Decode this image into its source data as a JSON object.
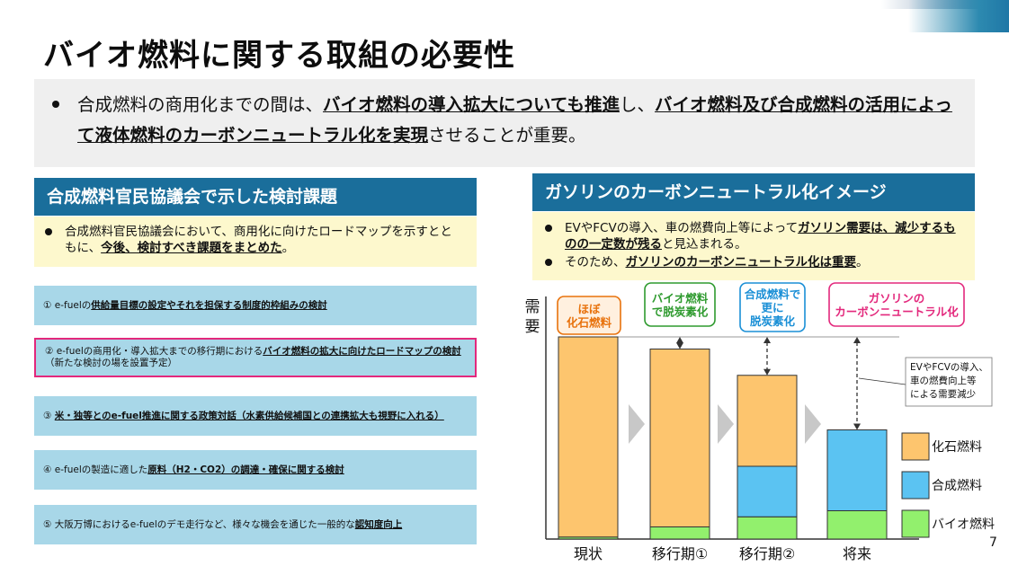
{
  "title": "バイオ燃料に関する取組の必要性",
  "summary": {
    "p1": "合成燃料の商用化までの間は、",
    "b1": "バイオ燃料の導入拡大についても推進",
    "p2": "し、",
    "b2": "バイオ燃料及び合成燃料の活用によって液体燃料のカーボンニュートラル化を実現",
    "p3": "させることが重要。"
  },
  "left": {
    "header": "合成燃料官民協議会で示した検討課題",
    "note": {
      "p1": "合成燃料官民協議会において、商用化に向けたロードマップを示すとともに、",
      "b1": "今後、検討すべき課題をまとめた",
      "p2": "。"
    },
    "issues": [
      {
        "num": "①",
        "pre": "e-fuelの",
        "bold": "供給量目標の設定やそれを担保する制度的枠組みの検討",
        "post": "",
        "sub": ""
      },
      {
        "num": "②",
        "pre": "e-fuelの商用化・導入拡大までの移行期における",
        "bold": "バイオ燃料の拡大に向けたロードマップの検討",
        "post": "",
        "sub": "（新たな検討の場を設置予定）"
      },
      {
        "num": "③",
        "pre": "",
        "bold": "米・独等とのe-fuel推進に関する政策対話（水素供給候補国との連携拡大も視野に入れる）",
        "post": "",
        "sub": ""
      },
      {
        "num": "④",
        "pre": "e-fuelの製造に適した",
        "bold": "原料（H2・CO2）の調達・確保に関する検討",
        "post": "",
        "sub": ""
      },
      {
        "num": "⑤",
        "pre": "大阪万博におけるe-fuelのデモ走行など、様々な機会を通じた一般的な",
        "bold": "認知度向上",
        "post": "",
        "sub": ""
      }
    ]
  },
  "right": {
    "header": "ガソリンのカーボンニュートラル化イメージ",
    "bullet1": {
      "p1": "EVやFCVの導入、車の燃費向上等によって",
      "b1": "ガソリン需要は、減少するものの一定数が残る",
      "p2": "と見込まれる。"
    },
    "bullet2": {
      "p1": "そのため、",
      "b1": "ガソリンのカーボンニュートラル化は重要",
      "p2": "。"
    }
  },
  "chart_data": {
    "type": "bar",
    "stacked": true,
    "ylabel": "需要",
    "categories": [
      "現状",
      "移行期①",
      "移行期②",
      "将来"
    ],
    "series": [
      {
        "name": "バイオ燃料",
        "color": "#92f06d",
        "values": [
          1,
          6,
          11,
          14
        ]
      },
      {
        "name": "合成燃料",
        "color": "#5bc3f2",
        "values": [
          0,
          0,
          25,
          40
        ]
      },
      {
        "name": "化石燃料",
        "color": "#fdc56e",
        "values": [
          99,
          88,
          45,
          0
        ]
      }
    ],
    "callouts": [
      {
        "text": [
          "ほぼ",
          "化石燃料"
        ],
        "color": "#e8720c",
        "fill": "#fff0df"
      },
      {
        "text": [
          "バイオ燃料",
          "で脱炭素化"
        ],
        "color": "#2e9a2e",
        "fill": "#ffffff"
      },
      {
        "text": [
          "合成燃料で",
          "更に",
          "脱炭素化"
        ],
        "color": "#1a8fd6",
        "fill": "#ffffff"
      },
      {
        "text": [
          "ガソリンの",
          "カーボンニュートラル化"
        ],
        "color": "#e3287c",
        "fill": "#ffffff"
      }
    ],
    "annotation": [
      "EVやFCVの導入、",
      "車の燃費向上等",
      "による需要減少"
    ]
  },
  "page_number": "7",
  "colors": {
    "header": "#1a6e9b",
    "issue_bg": "#a8d7e8",
    "highlight": "#e3287c",
    "note_bg": "#fdf8cd"
  }
}
